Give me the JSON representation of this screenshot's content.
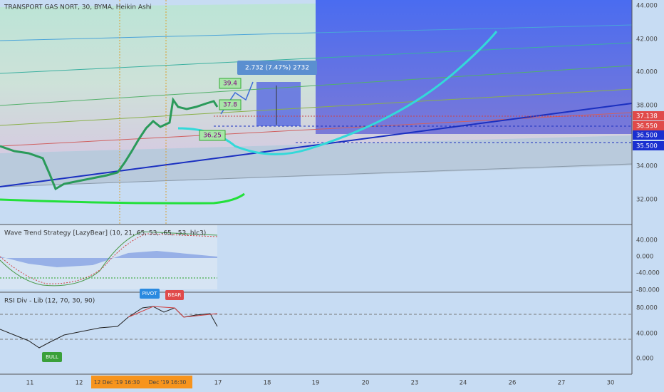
{
  "header": {
    "title": "TRANSPORT GAS NORT, 30, BYMA, Heikin Ashi"
  },
  "price_axis": {
    "labels": [
      "44.000",
      "42.000",
      "40.000",
      "38.000",
      "34.000",
      "32.000"
    ]
  },
  "price_tags": [
    "37.138",
    "36.550",
    "36.500",
    "35.500"
  ],
  "annotations": {
    "measure": "2.732 (7.47%) 2732",
    "level_high": "39.4",
    "level_mid": "37.8",
    "level_low": "36.25"
  },
  "wave_trend": {
    "title": "Wave Trend Strategy [LazyBear] (10, 21, 65, 53, -65, -53, hlc3)",
    "axis_labels": [
      "40.000",
      "0.000",
      "-40.000",
      "-80.000"
    ]
  },
  "rsi": {
    "title": "RSI Div - Lib (12, 70, 30, 90)",
    "axis_labels": [
      "80.000",
      "40.000",
      "0.000"
    ],
    "signals": {
      "pivot": "PIVOT",
      "bear": "BEAR",
      "bull": "BULL"
    }
  },
  "time_axis": {
    "labels": [
      "11",
      "12",
      "17",
      "18",
      "19",
      "20",
      "23",
      "24",
      "26",
      "27",
      "30"
    ],
    "highlight_start": "12 Dec '19  16:30",
    "highlight_end": "Dec '19  16:30"
  }
}
